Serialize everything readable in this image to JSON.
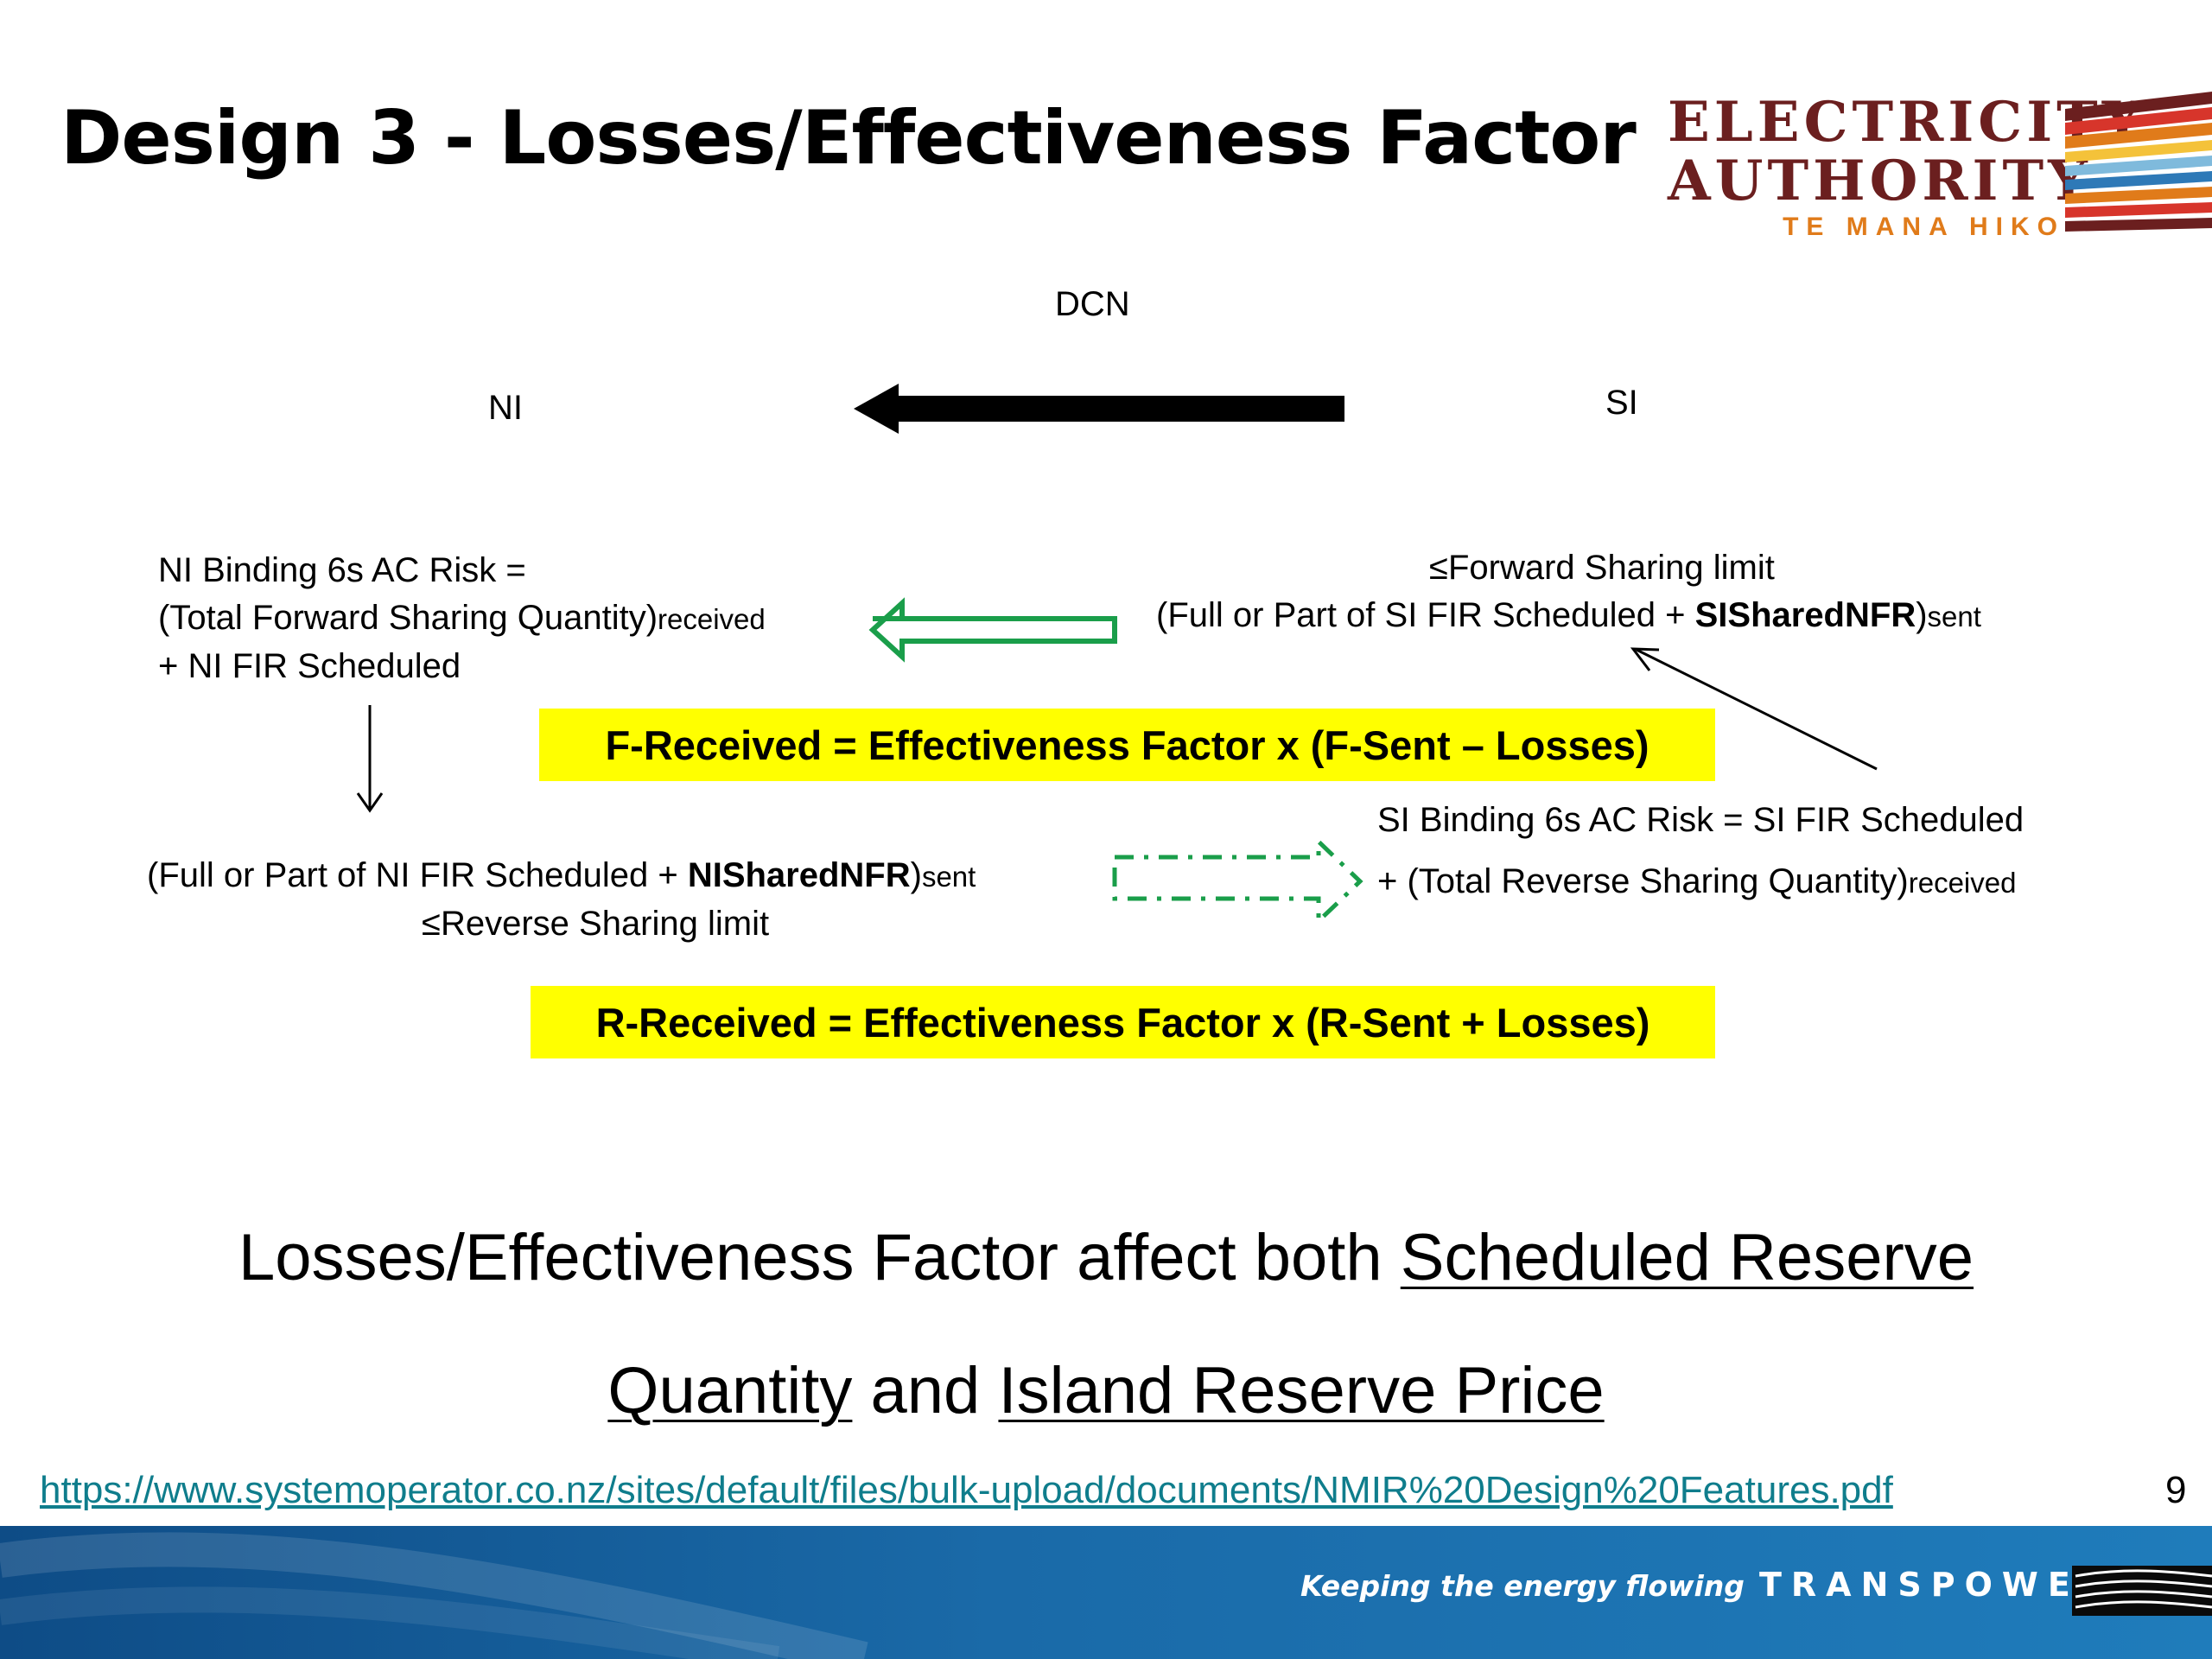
{
  "slide": {
    "title": "Design 3 - Losses/Effectiveness Factor",
    "page_number": "9"
  },
  "logo": {
    "line1": "ELECTRICITY",
    "line2": "AUTHORITY",
    "line3": "TE MANA HIKO",
    "icon": "striped-flag-logo"
  },
  "diagram": {
    "dcn_label": "DCN",
    "ni_label": "NI",
    "si_label": "SI",
    "ni_risk": {
      "line1": "NI Binding 6s AC Risk =",
      "line2_main": "(Total Forward Sharing Quantity)",
      "line2_sub": "received",
      "line3": "+ NI FIR Scheduled"
    },
    "si_forward": {
      "line1": "≤Forward Sharing limit",
      "line2_a": "(Full or Part of SI FIR Scheduled + ",
      "line2_bold": "SISharedNFR",
      "line2_b": ")",
      "line2_sub": "sent"
    },
    "formula_forward": "F-Received = Effectiveness Factor x (F-Sent – Losses)",
    "si_risk": {
      "line1": "SI Binding 6s AC Risk = SI FIR Scheduled",
      "line2_main": "+ (Total Reverse Sharing Quantity)",
      "line2_sub": "received"
    },
    "ni_reverse": {
      "line1_a": "(Full or Part of NI FIR Scheduled + ",
      "line1_bold": "NISharedNFR",
      "line1_b": ")",
      "line1_sub": "sent",
      "line2": "≤Reverse Sharing limit"
    },
    "formula_reverse": "R-Received = Effectiveness Factor x (R-Sent + Losses)"
  },
  "note": {
    "a": "Losses/Effectiveness Factor affect both ",
    "u1": "Scheduled Reserve",
    "u2": "Quantity",
    "b": " and ",
    "u3": "Island Reserve Price"
  },
  "source_link": "https://www.systemoperator.co.nz/sites/default/files/bulk-upload/documents/NMIR%20Design%20Features.pdf",
  "footer": {
    "tagline": "Keeping the energy flowing",
    "brand": "TRANSPOWER",
    "icon": "transpower-lines-logo"
  },
  "colors": {
    "highlight": "#ffff00",
    "arrow_green": "#1a9e4a",
    "link": "#0f7d8c",
    "footer_blue": "#1a6aa8",
    "logo_dark": "#6b1f1f",
    "logo_orange": "#e07b1a"
  }
}
